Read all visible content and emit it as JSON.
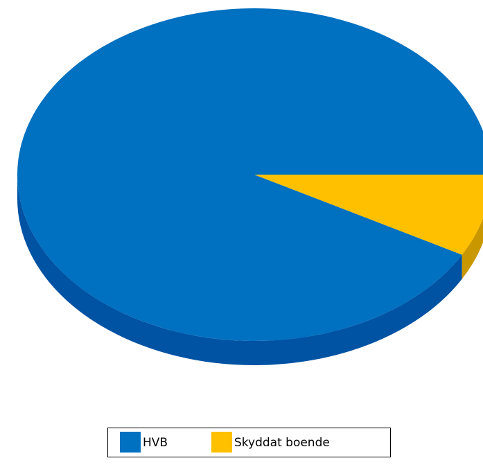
{
  "chart_data": {
    "type": "pie",
    "categories": [
      "HVB",
      "Skyddat boende"
    ],
    "values": [
      92,
      8
    ],
    "colors": [
      "#0070c0",
      "#ffc000"
    ],
    "side_colors": [
      "#0052a3",
      "#c99700"
    ],
    "legend": "bottom",
    "start_angle": 0
  }
}
